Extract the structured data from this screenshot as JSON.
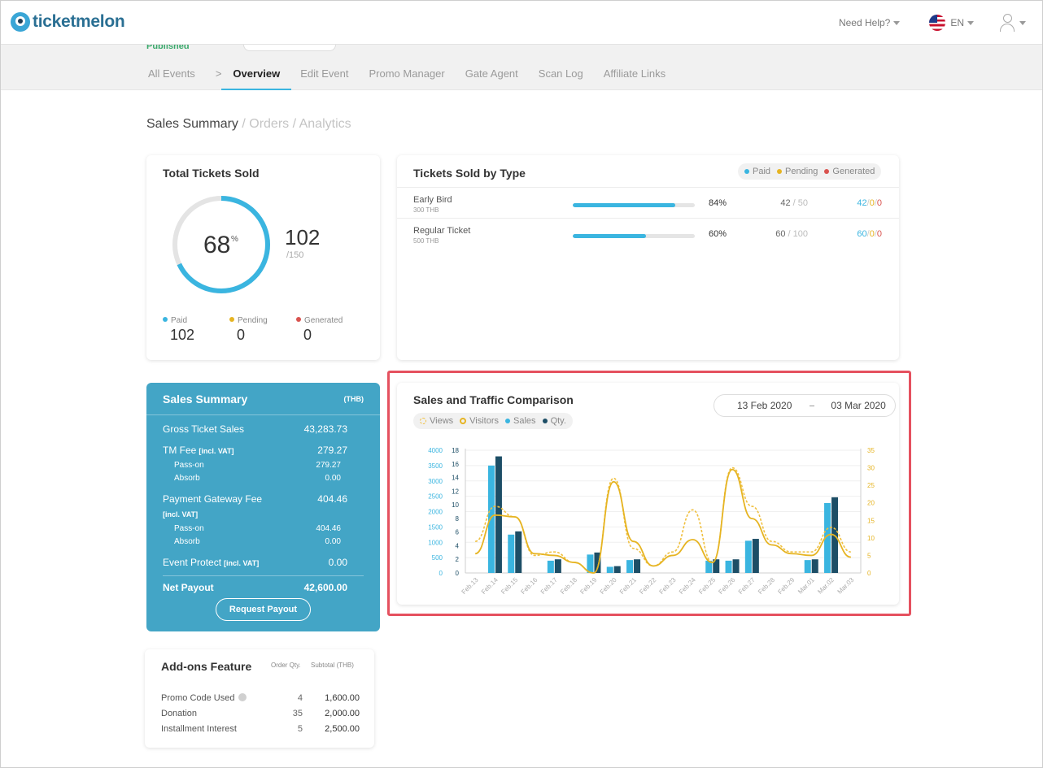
{
  "header": {
    "logo_text": "ticketmelon",
    "help_label": "Need Help?",
    "language": "EN"
  },
  "event": {
    "status": "Published"
  },
  "nav": {
    "tabs": [
      {
        "label": "All Events"
      },
      {
        "label": ">"
      },
      {
        "label": "Overview",
        "active": true
      },
      {
        "label": "Edit Event"
      },
      {
        "label": "Promo Manager"
      },
      {
        "label": "Gate Agent"
      },
      {
        "label": "Scan Log"
      },
      {
        "label": "Affiliate Links"
      }
    ]
  },
  "page": {
    "heading": "Sales Summary",
    "heading_links": " / Orders / Analytics"
  },
  "total_tickets": {
    "title": "Total Tickets Sold",
    "percent": 68,
    "percent_sign": "%",
    "sold": "102",
    "capacity": "/150",
    "paid_label": "Paid",
    "paid": "102",
    "pending_label": "Pending",
    "pending": "0",
    "generated_label": "Generated",
    "generated": "0"
  },
  "tickets_by_type": {
    "title": "Tickets Sold by Type",
    "legend": [
      "Paid",
      "Pending",
      "Generated"
    ],
    "rows": [
      {
        "name": "Early Bird",
        "price": "300 THB",
        "percent": 84,
        "percent_label": "84%",
        "sold": "42",
        "total": " / 50",
        "paid": "42",
        "pending": "0",
        "generated": "0"
      },
      {
        "name": "Regular Ticket",
        "price": "500 THB",
        "percent": 60,
        "percent_label": "60%",
        "sold": "60",
        "total": " / 100",
        "paid": "60",
        "pending": "0",
        "generated": "0"
      }
    ]
  },
  "sales_summary": {
    "title": "Sales Summary",
    "currency": "(THB)",
    "gross_label": "Gross Ticket Sales",
    "gross": "43,283.73",
    "tm_fee_label": "TM Fee",
    "tm_fee_note": "[incl. VAT]",
    "tm_fee": "279.27",
    "tm_passon_label": "Pass-on",
    "tm_passon": "279.27",
    "tm_absorb_label": "Absorb",
    "tm_absorb": "0.00",
    "pg_fee_label": "Payment Gateway Fee",
    "pg_fee_note": "[incl. VAT]",
    "pg_fee": "404.46",
    "pg_passon_label": "Pass-on",
    "pg_passon": "404.46",
    "pg_absorb_label": "Absorb",
    "pg_absorb": "0.00",
    "protect_label": "Event Protect",
    "protect_note": "[incl. VAT]",
    "protect": "0.00",
    "net_label": "Net Payout",
    "net": "42,600.00",
    "payout_button": "Request Payout"
  },
  "addons": {
    "title": "Add-ons Feature",
    "col_qty": "Order Qty.",
    "col_subtotal": "Subtotal (THB)",
    "rows": [
      {
        "name": "Promo Code Used",
        "qty": "4",
        "subtotal": "1,600.00"
      },
      {
        "name": "Donation",
        "qty": "35",
        "subtotal": "2,000.00"
      },
      {
        "name": "Installment Interest",
        "qty": "5",
        "subtotal": "2,500.00"
      }
    ]
  },
  "traffic": {
    "title": "Sales and Traffic Comparison",
    "date_from": "13 Feb 2020",
    "date_to": "03 Mar 2020",
    "legend": [
      "Views",
      "Visitors",
      "Sales",
      "Qty."
    ]
  },
  "colors": {
    "accent": "#3ab5e0",
    "sales_bar": "#3ab5e0",
    "qty_bar": "#1d4e66",
    "views_line": "#f0c040",
    "visitors_line": "#e6b422",
    "pending": "#e6b422",
    "generated": "#d9534f",
    "summary_bg": "#43a5c6",
    "highlight": "#e5515f"
  },
  "chart_data": {
    "type": "bar",
    "categories": [
      "Feb.13",
      "Feb.14",
      "Feb.15",
      "Feb.16",
      "Feb.17",
      "Feb.18",
      "Feb.19",
      "Feb.20",
      "Feb.21",
      "Feb.22",
      "Feb.23",
      "Feb.24",
      "Feb.25",
      "Feb.26",
      "Feb.27",
      "Feb.28",
      "Feb.29",
      "Mar.01",
      "Mar.02",
      "Mar.03"
    ],
    "left_axis_1": {
      "ticks": [
        0,
        500,
        1000,
        1500,
        2000,
        2500,
        3000,
        3500,
        4000
      ],
      "range": [
        0,
        4000
      ]
    },
    "left_axis_2": {
      "ticks": [
        0,
        2,
        4,
        6,
        8,
        10,
        12,
        14,
        16,
        18
      ],
      "range": [
        0,
        18
      ]
    },
    "right_axis": {
      "ticks": [
        0,
        5,
        10,
        15,
        20,
        25,
        30,
        35
      ],
      "range": [
        0,
        35
      ]
    },
    "series": [
      {
        "name": "Sales",
        "type": "bar",
        "axis": "left_axis_1",
        "values": [
          0,
          3500,
          1250,
          0,
          400,
          0,
          600,
          200,
          420,
          0,
          0,
          0,
          400,
          400,
          1050,
          0,
          0,
          420,
          2280,
          0
        ]
      },
      {
        "name": "Qty.",
        "type": "bar",
        "axis": "left_axis_2",
        "values": [
          0,
          17.1,
          6.1,
          0,
          2.0,
          0,
          3.0,
          1.0,
          2.0,
          0,
          0,
          0,
          2.0,
          2.0,
          5.0,
          0,
          0,
          2.0,
          11.1,
          0
        ]
      },
      {
        "name": "Views",
        "type": "line",
        "axis": "right_axis",
        "style": "dashed",
        "values": [
          9,
          19,
          16,
          5,
          6,
          3,
          0,
          27,
          7,
          2,
          6,
          18,
          3,
          30,
          19,
          9,
          6,
          6,
          13,
          6
        ]
      },
      {
        "name": "Visitors",
        "type": "line",
        "axis": "right_axis",
        "style": "solid",
        "values": [
          5.5,
          16.5,
          16,
          5.5,
          5,
          3,
          0,
          26,
          9,
          2,
          5,
          9.5,
          3,
          29.5,
          15.5,
          8,
          5.5,
          5,
          11,
          4.5
        ]
      }
    ]
  }
}
